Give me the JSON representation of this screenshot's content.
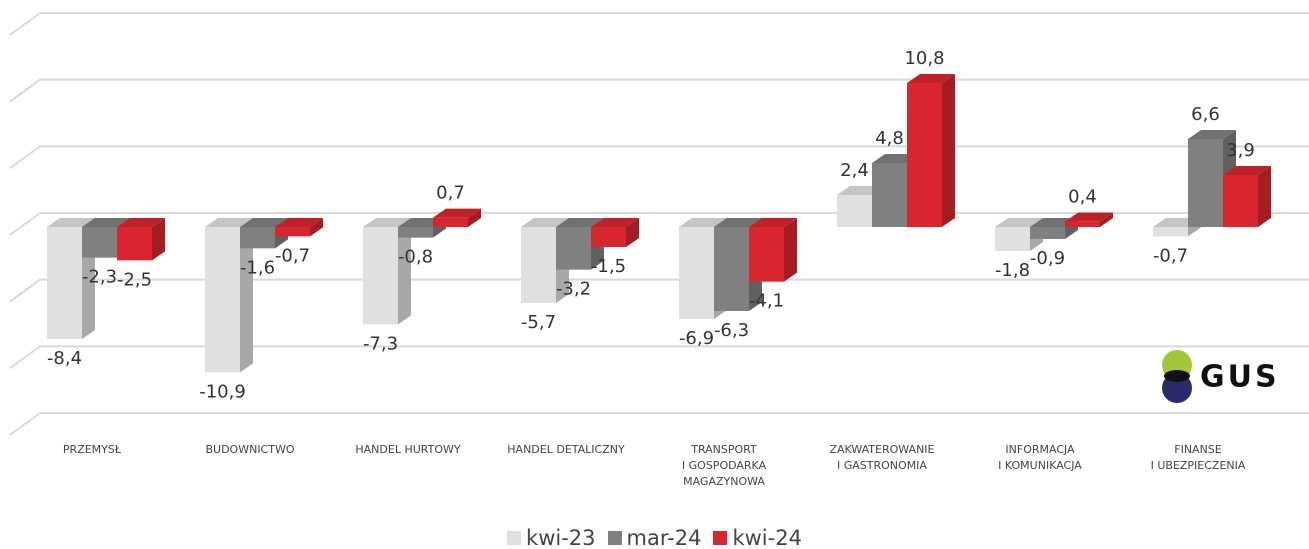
{
  "chart_data": {
    "type": "bar3d",
    "categories": [
      "PRZEMYSŁ",
      "BUDOWNICTWO",
      "HANDEL HURTOWY",
      "HANDEL DETALICZNY",
      "TRANSPORT\nI GOSPODARKA\nMAGAZYNOWA",
      "ZAKWATEROWANIE\nI GASTRONOMIA",
      "INFORMACJA\nI KOMUNIKACJA",
      "FINANSE\nI UBEZPIECZENIA"
    ],
    "series": [
      {
        "name": "kwi-23",
        "color": "#e0e0e0",
        "values": [
          -8.4,
          -10.9,
          -7.3,
          -5.7,
          -6.9,
          2.4,
          -1.8,
          -0.7
        ],
        "value_labels": [
          "-8,4",
          "-10,9",
          "-7,3",
          "-5,7",
          "-6,9",
          "2,4",
          "-1,8",
          "-0,7"
        ]
      },
      {
        "name": "mar-24",
        "color": "#808080",
        "values": [
          -2.3,
          -1.6,
          -0.8,
          -3.2,
          -6.3,
          4.8,
          -0.9,
          6.6
        ],
        "value_labels": [
          "-2,3",
          "-1,6",
          "-0,8",
          "-3,2",
          "-6,3",
          "4,8",
          "-0,9",
          "6,6"
        ]
      },
      {
        "name": "kwi-24",
        "color": "#d9262e",
        "values": [
          -2.5,
          -0.7,
          0.7,
          -1.5,
          -4.1,
          10.8,
          0.4,
          3.9
        ],
        "value_labels": [
          "-2,5",
          "-0,7",
          "0,7",
          "-1,5",
          "-4,1",
          "10,8",
          "0,4",
          "3,9"
        ]
      }
    ],
    "ylim": [
      -15,
      15
    ],
    "yticks": [
      -15,
      -10,
      -5,
      0,
      5,
      10,
      15
    ],
    "grid": true,
    "legend": "bottom",
    "logo": "GUS"
  }
}
